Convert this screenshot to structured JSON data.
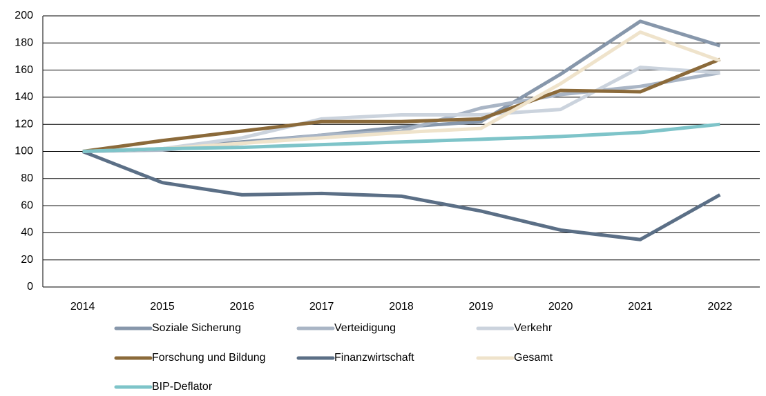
{
  "chart_data": {
    "type": "line",
    "categories": [
      "2014",
      "2015",
      "2016",
      "2017",
      "2018",
      "2019",
      "2020",
      "2021",
      "2022"
    ],
    "series": [
      {
        "name": "Soziale Sicherung",
        "color": "#8797ab",
        "values": [
          100,
          102,
          107,
          112,
          118,
          122,
          157,
          196,
          178
        ]
      },
      {
        "name": "Verteidigung",
        "color": "#a9b5c5",
        "values": [
          100,
          101,
          106,
          112,
          115,
          132,
          142,
          148,
          158
        ]
      },
      {
        "name": "Verkehr",
        "color": "#cbd3dd",
        "values": [
          100,
          102,
          110,
          124,
          127,
          127,
          131,
          162,
          158
        ]
      },
      {
        "name": "Forschung und Bildung",
        "color": "#8b6a3a",
        "values": [
          100,
          108,
          115,
          122,
          122,
          124,
          145,
          144,
          168
        ]
      },
      {
        "name": "Finanzwirtschaft",
        "color": "#5b6f86",
        "values": [
          100,
          77,
          68,
          69,
          67,
          56,
          42,
          35,
          68
        ]
      },
      {
        "name": "Gesamt",
        "color": "#efe3cb",
        "values": [
          100,
          102,
          106,
          110,
          114,
          117,
          150,
          188,
          167
        ]
      },
      {
        "name": "BIP-Deflator",
        "color": "#7ec4c9",
        "values": [
          100,
          102,
          103,
          105,
          107,
          109,
          111,
          114,
          120
        ]
      }
    ],
    "ylim": [
      0,
      200
    ],
    "yticks": [
      0,
      20,
      40,
      60,
      80,
      100,
      120,
      140,
      160,
      180,
      200
    ],
    "grid": true
  }
}
